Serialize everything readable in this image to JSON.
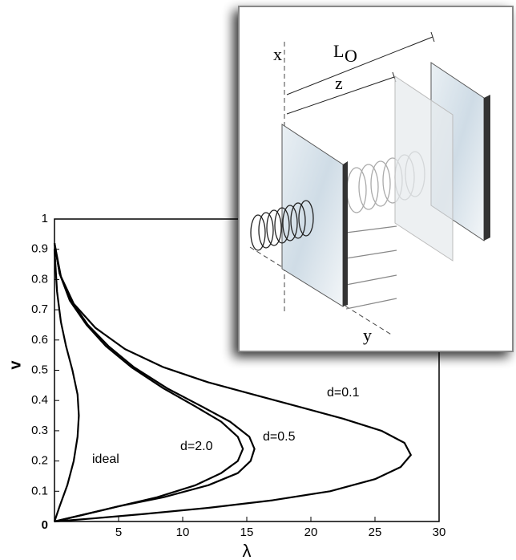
{
  "chart_data": {
    "type": "line",
    "x_label": "λ",
    "y_label": "v",
    "xlim": [
      0,
      30
    ],
    "ylim": [
      0,
      1
    ],
    "xticks": [
      5,
      10,
      15,
      20,
      25,
      30
    ],
    "yticks": [
      0,
      0.1,
      0.2,
      0.3,
      0.4,
      0.5,
      0.6,
      0.7,
      0.8,
      0.9,
      1
    ],
    "series": [
      {
        "name": "ideal",
        "color": "#000000",
        "x": [
          0,
          0.4,
          1.0,
          1.5,
          1.8,
          1.9,
          1.8,
          1.4,
          0.9,
          0.5,
          0.2,
          0
        ],
        "values": [
          0,
          0.05,
          0.12,
          0.2,
          0.28,
          0.35,
          0.42,
          0.5,
          0.58,
          0.66,
          0.76,
          0.9
        ]
      },
      {
        "name": "d=2.0",
        "color": "#000000",
        "x": [
          0,
          2,
          5,
          8,
          11,
          13,
          14.3,
          14.7,
          14.3,
          13,
          11,
          8.5,
          6,
          4,
          2.5,
          1.2,
          0.4,
          0
        ],
        "values": [
          0,
          0.02,
          0.05,
          0.08,
          0.12,
          0.16,
          0.2,
          0.24,
          0.28,
          0.33,
          0.38,
          0.44,
          0.51,
          0.58,
          0.65,
          0.73,
          0.82,
          0.92
        ]
      },
      {
        "name": "d=0.5",
        "color": "#000000",
        "x": [
          0,
          2,
          5,
          8.5,
          12,
          14.3,
          15.3,
          15.6,
          15.2,
          13.7,
          11.5,
          8.8,
          6.2,
          4.2,
          2.6,
          1.3,
          0.4,
          0
        ],
        "values": [
          0,
          0.02,
          0.05,
          0.08,
          0.12,
          0.16,
          0.2,
          0.24,
          0.28,
          0.33,
          0.38,
          0.44,
          0.51,
          0.58,
          0.65,
          0.73,
          0.82,
          0.92
        ]
      },
      {
        "name": "d=0.1",
        "color": "#000000",
        "x": [
          0,
          3,
          7,
          12,
          17,
          21.5,
          25,
          27,
          27.8,
          27.3,
          25.5,
          22.5,
          19,
          15.5,
          12,
          8.5,
          5.5,
          3.2,
          1.5,
          0.5,
          0
        ],
        "values": [
          0,
          0.01,
          0.025,
          0.045,
          0.07,
          0.1,
          0.14,
          0.18,
          0.22,
          0.26,
          0.3,
          0.34,
          0.38,
          0.42,
          0.46,
          0.51,
          0.57,
          0.64,
          0.72,
          0.81,
          0.92
        ]
      }
    ]
  },
  "inset": {
    "labels": {
      "x": "x",
      "L": "L",
      "O": "O",
      "z": "z",
      "y": "y"
    }
  }
}
